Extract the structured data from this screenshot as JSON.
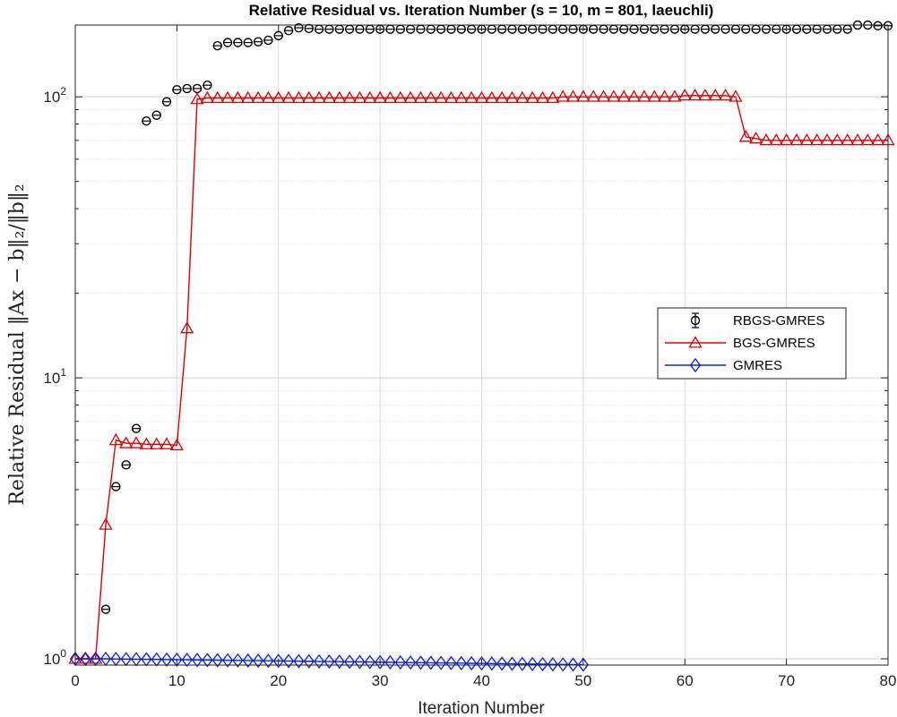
{
  "chart_data": {
    "type": "line",
    "title": "Relative Residual vs. Iteration Number (s = 10, m = 801, laeuchli)",
    "xlabel": "Iteration Number",
    "ylabel": "Relative Residual ‖Ax − b‖₂/‖b‖₂",
    "xlim": [
      0,
      80
    ],
    "ylim": [
      0.95,
      180
    ],
    "yscale": "log",
    "xticks": [
      "0",
      "10",
      "20",
      "30",
      "40",
      "50",
      "60",
      "70",
      "80"
    ],
    "yticks": [
      {
        "value": 1,
        "base": "10",
        "exp": "0"
      },
      {
        "value": 10,
        "base": "10",
        "exp": "1"
      },
      {
        "value": 100,
        "base": "10",
        "exp": "2"
      }
    ],
    "grid": true,
    "legend_position": "right-middle",
    "series": [
      {
        "name": "RBGS-GMRES",
        "color": "#000000",
        "marker": "circle",
        "line": false,
        "x": [
          3,
          4,
          5,
          6,
          7,
          8,
          9,
          10,
          11,
          12,
          13,
          14,
          15,
          16,
          17,
          18,
          19,
          20,
          21,
          22,
          23,
          24,
          25,
          26,
          27,
          28,
          29,
          30,
          31,
          32,
          33,
          34,
          35,
          36,
          37,
          38,
          39,
          40,
          41,
          42,
          43,
          44,
          45,
          46,
          47,
          48,
          49,
          50,
          51,
          52,
          53,
          54,
          55,
          56,
          57,
          58,
          59,
          60,
          61,
          62,
          63,
          64,
          65,
          66,
          67,
          68,
          69,
          70,
          71,
          72,
          73,
          74,
          75,
          76,
          77,
          78,
          79,
          80
        ],
        "y": [
          1.5,
          4.1,
          4.9,
          6.6,
          82,
          86,
          96,
          106,
          107,
          107,
          110,
          152,
          156,
          156,
          156,
          157,
          159,
          165,
          172,
          176,
          175,
          174,
          174,
          174,
          174,
          174,
          174,
          174,
          174,
          174,
          174,
          174,
          174,
          174,
          174,
          174,
          174,
          174,
          174,
          174,
          174,
          174,
          174,
          174,
          174,
          174,
          174,
          174,
          174,
          174,
          174,
          174,
          174,
          174,
          174,
          174,
          174,
          174,
          174,
          174,
          174,
          174,
          174,
          174,
          174,
          174,
          174,
          174,
          174,
          174,
          174,
          174,
          174,
          174,
          180,
          180,
          179,
          179
        ]
      },
      {
        "name": "BGS-GMRES",
        "color": "#e00000",
        "marker": "triangle",
        "line": true,
        "x": [
          0,
          1,
          2,
          3,
          4,
          5,
          6,
          7,
          8,
          9,
          10,
          11,
          12,
          13,
          14,
          15,
          16,
          17,
          18,
          19,
          20,
          21,
          22,
          23,
          24,
          25,
          26,
          27,
          28,
          29,
          30,
          31,
          32,
          33,
          34,
          35,
          36,
          37,
          38,
          39,
          40,
          41,
          42,
          43,
          44,
          45,
          46,
          47,
          48,
          49,
          50,
          51,
          52,
          53,
          54,
          55,
          56,
          57,
          58,
          59,
          60,
          61,
          62,
          63,
          64,
          65,
          66,
          67,
          68,
          69,
          70,
          71,
          72,
          73,
          74,
          75,
          76,
          77,
          78,
          79,
          80
        ],
        "y": [
          1.0,
          1.0,
          1.0,
          3.0,
          6.0,
          5.85,
          5.85,
          5.8,
          5.8,
          5.8,
          5.75,
          15,
          98,
          99,
          99,
          99,
          99,
          99,
          99,
          99,
          99,
          99,
          99,
          99,
          99,
          99,
          99,
          99,
          99,
          99,
          99,
          99,
          99,
          99,
          99,
          99,
          99,
          99,
          99,
          99,
          99,
          99,
          99,
          99,
          99,
          99,
          99,
          99,
          100,
          100,
          100,
          100,
          100,
          100,
          100,
          100,
          100,
          100,
          100,
          100,
          101,
          101,
          101,
          101,
          101,
          100,
          72,
          71,
          70,
          70,
          70,
          70,
          70,
          70,
          70,
          70,
          70,
          70,
          70,
          70,
          70
        ]
      },
      {
        "name": "GMRES",
        "color": "#0a1ee6",
        "marker": "diamond",
        "line": true,
        "x": [
          0,
          1,
          2,
          3,
          4,
          5,
          6,
          7,
          8,
          9,
          10,
          11,
          12,
          13,
          14,
          15,
          16,
          17,
          18,
          19,
          20,
          21,
          22,
          23,
          24,
          25,
          26,
          27,
          28,
          29,
          30,
          31,
          32,
          33,
          34,
          35,
          36,
          37,
          38,
          39,
          40,
          41,
          42,
          43,
          44,
          45,
          46,
          47,
          48,
          49,
          50
        ],
        "y": [
          1.0,
          1.0,
          1.0,
          1.0,
          0.999,
          0.998,
          0.997,
          0.996,
          0.995,
          0.994,
          0.993,
          0.992,
          0.991,
          0.99,
          0.989,
          0.988,
          0.987,
          0.986,
          0.985,
          0.984,
          0.983,
          0.982,
          0.981,
          0.98,
          0.979,
          0.978,
          0.977,
          0.976,
          0.975,
          0.974,
          0.973,
          0.972,
          0.971,
          0.97,
          0.969,
          0.968,
          0.967,
          0.966,
          0.965,
          0.964,
          0.963,
          0.962,
          0.961,
          0.96,
          0.959,
          0.958,
          0.957,
          0.956,
          0.955,
          0.954,
          0.953
        ]
      }
    ]
  }
}
